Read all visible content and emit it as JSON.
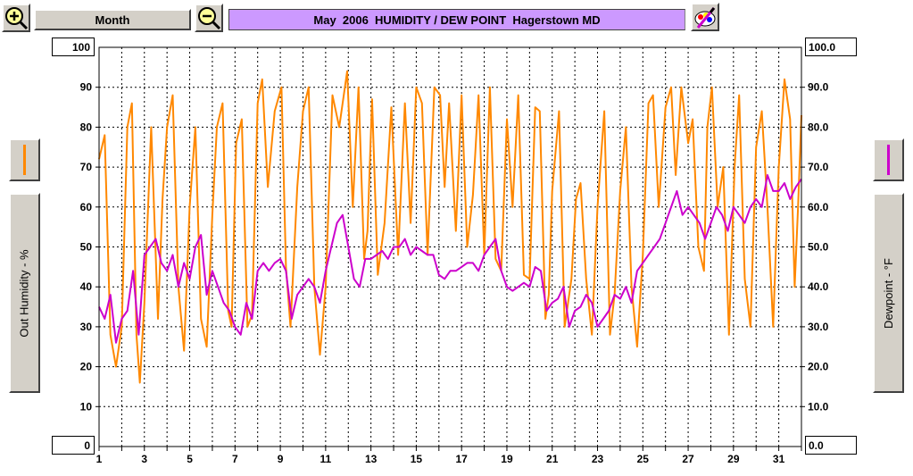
{
  "toolbar": {
    "zoom_in_icon": "zoom-in-magnifier-icon",
    "zoom_out_icon": "zoom-out-magnifier-icon",
    "period_label": "Month",
    "title": "May  2006  HUMIDITY / DEW POINT  Hagerstown MD",
    "paint_icon": "paint-palette-icon"
  },
  "left_axis": {
    "label": "Out Humidity - %",
    "max_label": "100",
    "min_label": "0",
    "swatch_color": "#ff8800"
  },
  "right_axis": {
    "label": "Dewpoint - °F",
    "max_label": "100.0",
    "min_label": "0.0",
    "swatch_color": "#cc00cc"
  },
  "chart_data": {
    "type": "line",
    "grid": true,
    "y_left": {
      "label": "Out Humidity - %",
      "range": [
        0,
        100
      ],
      "ticks": [
        "10",
        "20",
        "30",
        "40",
        "50",
        "60",
        "70",
        "80",
        "90"
      ]
    },
    "y_right": {
      "label": "Dewpoint - °F",
      "range": [
        0,
        100
      ],
      "ticks": [
        "10.0",
        "20.0",
        "30.0",
        "40.0",
        "50.0",
        "60.0",
        "70.0",
        "80.0",
        "90.0"
      ]
    },
    "x": {
      "range": [
        1,
        32
      ],
      "tick_labels": [
        "1",
        "3",
        "5",
        "7",
        "9",
        "11",
        "13",
        "15",
        "17",
        "19",
        "21",
        "23",
        "25",
        "27",
        "29",
        "31"
      ],
      "tick_values": [
        1,
        3,
        5,
        7,
        9,
        11,
        13,
        15,
        17,
        19,
        21,
        23,
        25,
        27,
        29,
        31
      ]
    },
    "series": [
      {
        "color": "#ff8800",
        "axis": "left",
        "points": [
          [
            1.0,
            72
          ],
          [
            1.25,
            78
          ],
          [
            1.5,
            28
          ],
          [
            1.75,
            20
          ],
          [
            2.0,
            30
          ],
          [
            2.25,
            80
          ],
          [
            2.45,
            86
          ],
          [
            2.65,
            28
          ],
          [
            2.8,
            16
          ],
          [
            3.0,
            36
          ],
          [
            3.3,
            80
          ],
          [
            3.6,
            32
          ],
          [
            3.8,
            62
          ],
          [
            4.0,
            80
          ],
          [
            4.25,
            88
          ],
          [
            4.5,
            40
          ],
          [
            4.75,
            24
          ],
          [
            5.0,
            60
          ],
          [
            5.25,
            80
          ],
          [
            5.5,
            32
          ],
          [
            5.75,
            25
          ],
          [
            6.0,
            58
          ],
          [
            6.2,
            80
          ],
          [
            6.45,
            86
          ],
          [
            6.7,
            34
          ],
          [
            6.85,
            30
          ],
          [
            7.05,
            76
          ],
          [
            7.3,
            82
          ],
          [
            7.55,
            30
          ],
          [
            7.75,
            33
          ],
          [
            8.0,
            86
          ],
          [
            8.2,
            92
          ],
          [
            8.45,
            65
          ],
          [
            8.75,
            84
          ],
          [
            9.05,
            90
          ],
          [
            9.25,
            45
          ],
          [
            9.45,
            30
          ],
          [
            9.75,
            65
          ],
          [
            10.0,
            84
          ],
          [
            10.25,
            90
          ],
          [
            10.5,
            40
          ],
          [
            10.75,
            23
          ],
          [
            11.0,
            40
          ],
          [
            11.3,
            88
          ],
          [
            11.6,
            80
          ],
          [
            11.95,
            94
          ],
          [
            12.2,
            60
          ],
          [
            12.45,
            90
          ],
          [
            12.7,
            47
          ],
          [
            12.85,
            54
          ],
          [
            13.05,
            87
          ],
          [
            13.3,
            43
          ],
          [
            13.6,
            56
          ],
          [
            13.9,
            85
          ],
          [
            14.2,
            48
          ],
          [
            14.5,
            86
          ],
          [
            14.75,
            56
          ],
          [
            15.0,
            90
          ],
          [
            15.25,
            86
          ],
          [
            15.5,
            48
          ],
          [
            15.8,
            90
          ],
          [
            16.05,
            88
          ],
          [
            16.25,
            65
          ],
          [
            16.45,
            86
          ],
          [
            16.75,
            54
          ],
          [
            17.0,
            88
          ],
          [
            17.25,
            50
          ],
          [
            17.5,
            63
          ],
          [
            17.75,
            88
          ],
          [
            18.0,
            48
          ],
          [
            18.25,
            90
          ],
          [
            18.5,
            47
          ],
          [
            18.75,
            44
          ],
          [
            19.0,
            82
          ],
          [
            19.25,
            60
          ],
          [
            19.5,
            88
          ],
          [
            19.75,
            43
          ],
          [
            20.0,
            42
          ],
          [
            20.25,
            85
          ],
          [
            20.45,
            84
          ],
          [
            20.7,
            32
          ],
          [
            20.85,
            38
          ],
          [
            21.0,
            64
          ],
          [
            21.3,
            84
          ],
          [
            21.55,
            30
          ],
          [
            21.85,
            42
          ],
          [
            22.05,
            62
          ],
          [
            22.25,
            66
          ],
          [
            22.5,
            42
          ],
          [
            22.75,
            28
          ],
          [
            23.0,
            60
          ],
          [
            23.3,
            84
          ],
          [
            23.55,
            28
          ],
          [
            23.75,
            38
          ],
          [
            24.0,
            64
          ],
          [
            24.25,
            80
          ],
          [
            24.5,
            40
          ],
          [
            24.75,
            25
          ],
          [
            25.0,
            48
          ],
          [
            25.25,
            86
          ],
          [
            25.45,
            88
          ],
          [
            25.7,
            60
          ],
          [
            26.0,
            85
          ],
          [
            26.25,
            90
          ],
          [
            26.45,
            68
          ],
          [
            26.7,
            90
          ],
          [
            27.0,
            76
          ],
          [
            27.2,
            82
          ],
          [
            27.45,
            50
          ],
          [
            27.7,
            44
          ],
          [
            27.85,
            80
          ],
          [
            28.05,
            90
          ],
          [
            28.3,
            60
          ],
          [
            28.55,
            70
          ],
          [
            28.8,
            28
          ],
          [
            29.05,
            70
          ],
          [
            29.25,
            88
          ],
          [
            29.5,
            42
          ],
          [
            29.75,
            30
          ],
          [
            30.0,
            75
          ],
          [
            30.25,
            84
          ],
          [
            30.5,
            60
          ],
          [
            30.75,
            30
          ],
          [
            31.0,
            70
          ],
          [
            31.25,
            92
          ],
          [
            31.5,
            82
          ],
          [
            31.7,
            40
          ],
          [
            31.85,
            60
          ],
          [
            32.0,
            83
          ]
        ]
      },
      {
        "color": "#cc00cc",
        "axis": "right",
        "points": [
          [
            1.0,
            35
          ],
          [
            1.25,
            32
          ],
          [
            1.5,
            38
          ],
          [
            1.75,
            26
          ],
          [
            2.0,
            32
          ],
          [
            2.25,
            34
          ],
          [
            2.5,
            44
          ],
          [
            2.75,
            28
          ],
          [
            3.0,
            48
          ],
          [
            3.25,
            50
          ],
          [
            3.5,
            52
          ],
          [
            3.75,
            46
          ],
          [
            4.0,
            44
          ],
          [
            4.25,
            48
          ],
          [
            4.5,
            40
          ],
          [
            4.75,
            46
          ],
          [
            5.0,
            42
          ],
          [
            5.25,
            50
          ],
          [
            5.5,
            53
          ],
          [
            5.75,
            38
          ],
          [
            6.0,
            44
          ],
          [
            6.25,
            40
          ],
          [
            6.5,
            36
          ],
          [
            6.75,
            34
          ],
          [
            7.0,
            30
          ],
          [
            7.25,
            28
          ],
          [
            7.5,
            36
          ],
          [
            7.75,
            32
          ],
          [
            8.0,
            44
          ],
          [
            8.25,
            46
          ],
          [
            8.5,
            44
          ],
          [
            8.75,
            46
          ],
          [
            9.0,
            47
          ],
          [
            9.25,
            44
          ],
          [
            9.5,
            32
          ],
          [
            9.75,
            38
          ],
          [
            10.0,
            40
          ],
          [
            10.25,
            42
          ],
          [
            10.5,
            40
          ],
          [
            10.75,
            36
          ],
          [
            11.0,
            44
          ],
          [
            11.25,
            50
          ],
          [
            11.5,
            56
          ],
          [
            11.75,
            58
          ],
          [
            12.0,
            50
          ],
          [
            12.25,
            42
          ],
          [
            12.5,
            40
          ],
          [
            12.75,
            47
          ],
          [
            13.0,
            47
          ],
          [
            13.25,
            48
          ],
          [
            13.5,
            49
          ],
          [
            13.75,
            47
          ],
          [
            14.0,
            50
          ],
          [
            14.25,
            50
          ],
          [
            14.5,
            52
          ],
          [
            14.75,
            48
          ],
          [
            15.0,
            50
          ],
          [
            15.25,
            49
          ],
          [
            15.5,
            48
          ],
          [
            15.75,
            48
          ],
          [
            16.0,
            43
          ],
          [
            16.25,
            42
          ],
          [
            16.5,
            44
          ],
          [
            16.75,
            44
          ],
          [
            17.0,
            45
          ],
          [
            17.25,
            46
          ],
          [
            17.5,
            46
          ],
          [
            17.75,
            44
          ],
          [
            18.0,
            48
          ],
          [
            18.25,
            50
          ],
          [
            18.5,
            52
          ],
          [
            18.75,
            44
          ],
          [
            19.0,
            40
          ],
          [
            19.25,
            39
          ],
          [
            19.5,
            40
          ],
          [
            19.75,
            41
          ],
          [
            20.0,
            40
          ],
          [
            20.25,
            45
          ],
          [
            20.5,
            44
          ],
          [
            20.75,
            34
          ],
          [
            21.0,
            36
          ],
          [
            21.25,
            37
          ],
          [
            21.5,
            40
          ],
          [
            21.75,
            30
          ],
          [
            22.0,
            34
          ],
          [
            22.25,
            35
          ],
          [
            22.5,
            38
          ],
          [
            22.75,
            36
          ],
          [
            23.0,
            30
          ],
          [
            23.25,
            32
          ],
          [
            23.5,
            34
          ],
          [
            23.75,
            38
          ],
          [
            24.0,
            37
          ],
          [
            24.25,
            40
          ],
          [
            24.5,
            36
          ],
          [
            24.75,
            44
          ],
          [
            25.0,
            46
          ],
          [
            25.25,
            48
          ],
          [
            25.5,
            50
          ],
          [
            25.75,
            52
          ],
          [
            26.0,
            56
          ],
          [
            26.25,
            60
          ],
          [
            26.5,
            64
          ],
          [
            26.75,
            58
          ],
          [
            27.0,
            60
          ],
          [
            27.25,
            58
          ],
          [
            27.5,
            56
          ],
          [
            27.75,
            52
          ],
          [
            28.0,
            56
          ],
          [
            28.25,
            60
          ],
          [
            28.5,
            58
          ],
          [
            28.75,
            54
          ],
          [
            29.0,
            60
          ],
          [
            29.25,
            58
          ],
          [
            29.5,
            56
          ],
          [
            29.75,
            60
          ],
          [
            30.0,
            62
          ],
          [
            30.25,
            60
          ],
          [
            30.5,
            68
          ],
          [
            30.75,
            64
          ],
          [
            31.0,
            64
          ],
          [
            31.25,
            66
          ],
          [
            31.5,
            62
          ],
          [
            31.75,
            65
          ],
          [
            32.0,
            67
          ]
        ]
      }
    ]
  }
}
